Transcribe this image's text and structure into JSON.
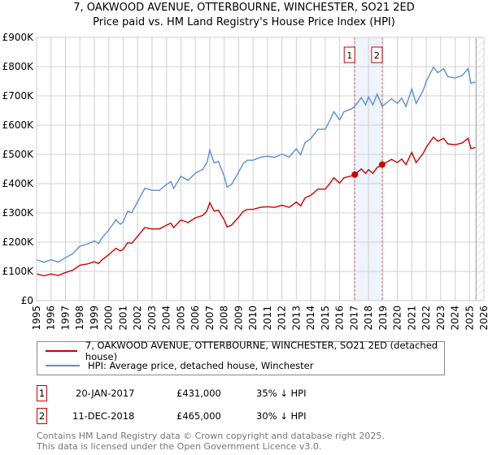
{
  "chart_data": {
    "type": "line",
    "title": "7, OAKWOOD AVENUE, OTTERBOURNE, WINCHESTER, SO21 2ED",
    "subtitle": "Price paid vs. HM Land Registry's House Price Index (HPI)",
    "xlim": [
      1995,
      2026
    ],
    "ylim": [
      0,
      900000
    ],
    "xticks": [
      "1995",
      "1996",
      "1997",
      "1998",
      "1999",
      "2000",
      "2001",
      "2002",
      "2003",
      "2004",
      "2005",
      "2006",
      "2007",
      "2008",
      "2009",
      "2010",
      "2011",
      "2012",
      "2013",
      "2014",
      "2015",
      "2016",
      "2017",
      "2018",
      "2019",
      "2020",
      "2021",
      "2022",
      "2023",
      "2024",
      "2025",
      "2026"
    ],
    "yticks": [
      {
        "v": 0,
        "label": "£0"
      },
      {
        "v": 100000,
        "label": "£100K"
      },
      {
        "v": 200000,
        "label": "£200K"
      },
      {
        "v": 300000,
        "label": "£300K"
      },
      {
        "v": 400000,
        "label": "£400K"
      },
      {
        "v": 500000,
        "label": "£500K"
      },
      {
        "v": 600000,
        "label": "£600K"
      },
      {
        "v": 700000,
        "label": "£700K"
      },
      {
        "v": 800000,
        "label": "£800K"
      },
      {
        "v": 900000,
        "label": "£900K"
      }
    ],
    "grid": true,
    "shaded_range": [
      2017.05,
      2018.95
    ],
    "hatched_from": 2025.45,
    "series": [
      {
        "name": "7, OAKWOOD AVENUE, OTTERBOURNE, WINCHESTER, SO21 2ED (detached house)",
        "color": "#cc0000",
        "x": [
          1995,
          1995.5,
          1996,
          1996.5,
          1997,
          1997.5,
          1998,
          1998.5,
          1999,
          1999.3,
          1999.5,
          2000,
          2000.5,
          2000.8,
          2001,
          2001.3,
          2001.6,
          2002,
          2002.5,
          2003,
          2003.5,
          2004,
          2004.3,
          2004.5,
          2005,
          2005.5,
          2006,
          2006.5,
          2006.8,
          2007,
          2007.3,
          2007.6,
          2008,
          2008.2,
          2008.5,
          2009,
          2009.3,
          2009.6,
          2010,
          2010.5,
          2011,
          2011.5,
          2012,
          2012.5,
          2013,
          2013.3,
          2013.6,
          2014,
          2014.5,
          2015,
          2015.3,
          2015.6,
          2016,
          2016.3,
          2016.8,
          2017.05,
          2017.5,
          2017.8,
          2018,
          2018.3,
          2018.6,
          2018.95,
          2019.2,
          2019.6,
          2020,
          2020.3,
          2020.6,
          2021,
          2021.3,
          2021.8,
          2022,
          2022.5,
          2022.8,
          2023.2,
          2023.5,
          2024,
          2024.5,
          2024.9,
          2025.1,
          2025.4
        ],
        "y": [
          91,
          85,
          91,
          86,
          96,
          104,
          121,
          125,
          133,
          127,
          138,
          157,
          179,
          170,
          175,
          198,
          196,
          220,
          250,
          245,
          245,
          258,
          265,
          250,
          276,
          267,
          283,
          291,
          306,
          335,
          306,
          309,
          276,
          252,
          258,
          285,
          304,
          312,
          312,
          319,
          321,
          319,
          326,
          319,
          337,
          324,
          351,
          360,
          381,
          381,
          399,
          420,
          402,
          420,
          426,
          431,
          450,
          435,
          448,
          435,
          455,
          465,
          472,
          483,
          472,
          484,
          465,
          507,
          472,
          504,
          524,
          559,
          545,
          555,
          536,
          533,
          539,
          555,
          520,
          523
        ],
        "y_unit": "thousand GBP"
      },
      {
        "name": "HPI: Average price, detached house, Winchester",
        "color": "#5b8fd4",
        "x": [
          1995,
          1995.5,
          1996,
          1996.5,
          1997,
          1997.5,
          1998,
          1998.5,
          1999,
          1999.3,
          1999.5,
          2000,
          2000.5,
          2000.8,
          2001,
          2001.3,
          2001.6,
          2002,
          2002.5,
          2003,
          2003.5,
          2004,
          2004.3,
          2004.5,
          2005,
          2005.5,
          2006,
          2006.5,
          2006.8,
          2007,
          2007.3,
          2007.6,
          2008,
          2008.2,
          2008.5,
          2009,
          2009.3,
          2009.6,
          2010,
          2010.5,
          2011,
          2011.5,
          2012,
          2012.5,
          2013,
          2013.3,
          2013.6,
          2014,
          2014.5,
          2015,
          2015.3,
          2015.6,
          2016,
          2016.3,
          2016.8,
          2017.05,
          2017.5,
          2017.8,
          2018,
          2018.3,
          2018.6,
          2018.95,
          2019.2,
          2019.6,
          2020,
          2020.3,
          2020.6,
          2021,
          2021.3,
          2021.8,
          2022,
          2022.5,
          2022.8,
          2023.2,
          2023.5,
          2024,
          2024.5,
          2024.9,
          2025.1,
          2025.4
        ],
        "y": [
          140,
          131,
          140,
          132,
          147,
          160,
          186,
          193,
          204,
          195,
          213,
          241,
          276,
          261,
          269,
          305,
          301,
          338,
          384,
          377,
          377,
          397,
          407,
          384,
          425,
          411,
          436,
          448,
          471,
          515,
          471,
          476,
          425,
          388,
          397,
          439,
          467,
          480,
          480,
          490,
          494,
          490,
          501,
          491,
          519,
          499,
          540,
          554,
          586,
          586,
          614,
          646,
          618,
          646,
          655,
          664,
          694,
          669,
          697,
          669,
          706,
          664,
          674,
          690,
          674,
          692,
          664,
          724,
          674,
          720,
          749,
          798,
          779,
          793,
          766,
          761,
          770,
          793,
          743,
          747
        ],
        "y_unit": "thousand GBP"
      }
    ],
    "sales": [
      {
        "num": "1",
        "x": 2017.05,
        "y": 431,
        "date": "20-JAN-2017",
        "price": "£431,000",
        "hpi": "35% ↓ HPI"
      },
      {
        "num": "2",
        "x": 2018.95,
        "y": 465,
        "date": "11-DEC-2018",
        "price": "£465,000",
        "hpi": "30% ↓ HPI"
      }
    ]
  },
  "footer": {
    "line1": "Contains HM Land Registry data © Crown copyright and database right 2025.",
    "line2": "This data is licensed under the Open Government Licence v3.0."
  }
}
